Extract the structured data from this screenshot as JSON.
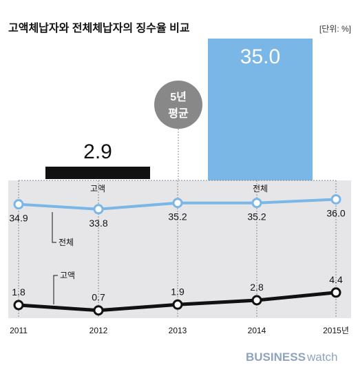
{
  "header": {
    "title": "고액체납자와 전체체납자의 징수율 비교",
    "unit": "[단위: %]"
  },
  "badge": {
    "line1": "5년",
    "line2": "평균"
  },
  "brand": {
    "part1": "BUSINESS",
    "part2": "watch"
  },
  "colors": {
    "total": "#7ab6e6",
    "high": "#111111",
    "background_band": "#e6e6e8",
    "badge": "#888888",
    "brand": "#8fa3bd"
  },
  "chart_data": [
    {
      "type": "bar",
      "title": "",
      "categories": [
        "고액",
        "전체"
      ],
      "values": [
        2.9,
        35.0
      ],
      "value_labels": [
        "2.9",
        "35.0"
      ],
      "annotation": "5년 평균"
    },
    {
      "type": "line",
      "title": "",
      "x": [
        "2011",
        "2012",
        "2013",
        "2014",
        "2015년"
      ],
      "series": [
        {
          "name": "전체",
          "values": [
            34.9,
            33.8,
            35.2,
            35.2,
            36.0
          ],
          "labels": [
            "34.9",
            "33.8",
            "35.2",
            "35.2",
            "36.0"
          ]
        },
        {
          "name": "고액",
          "values": [
            1.8,
            0.7,
            1.9,
            2.8,
            4.4
          ],
          "labels": [
            "1.8",
            "0.7",
            "1.9",
            "2.8",
            "4.4"
          ]
        }
      ],
      "grid": false
    }
  ]
}
